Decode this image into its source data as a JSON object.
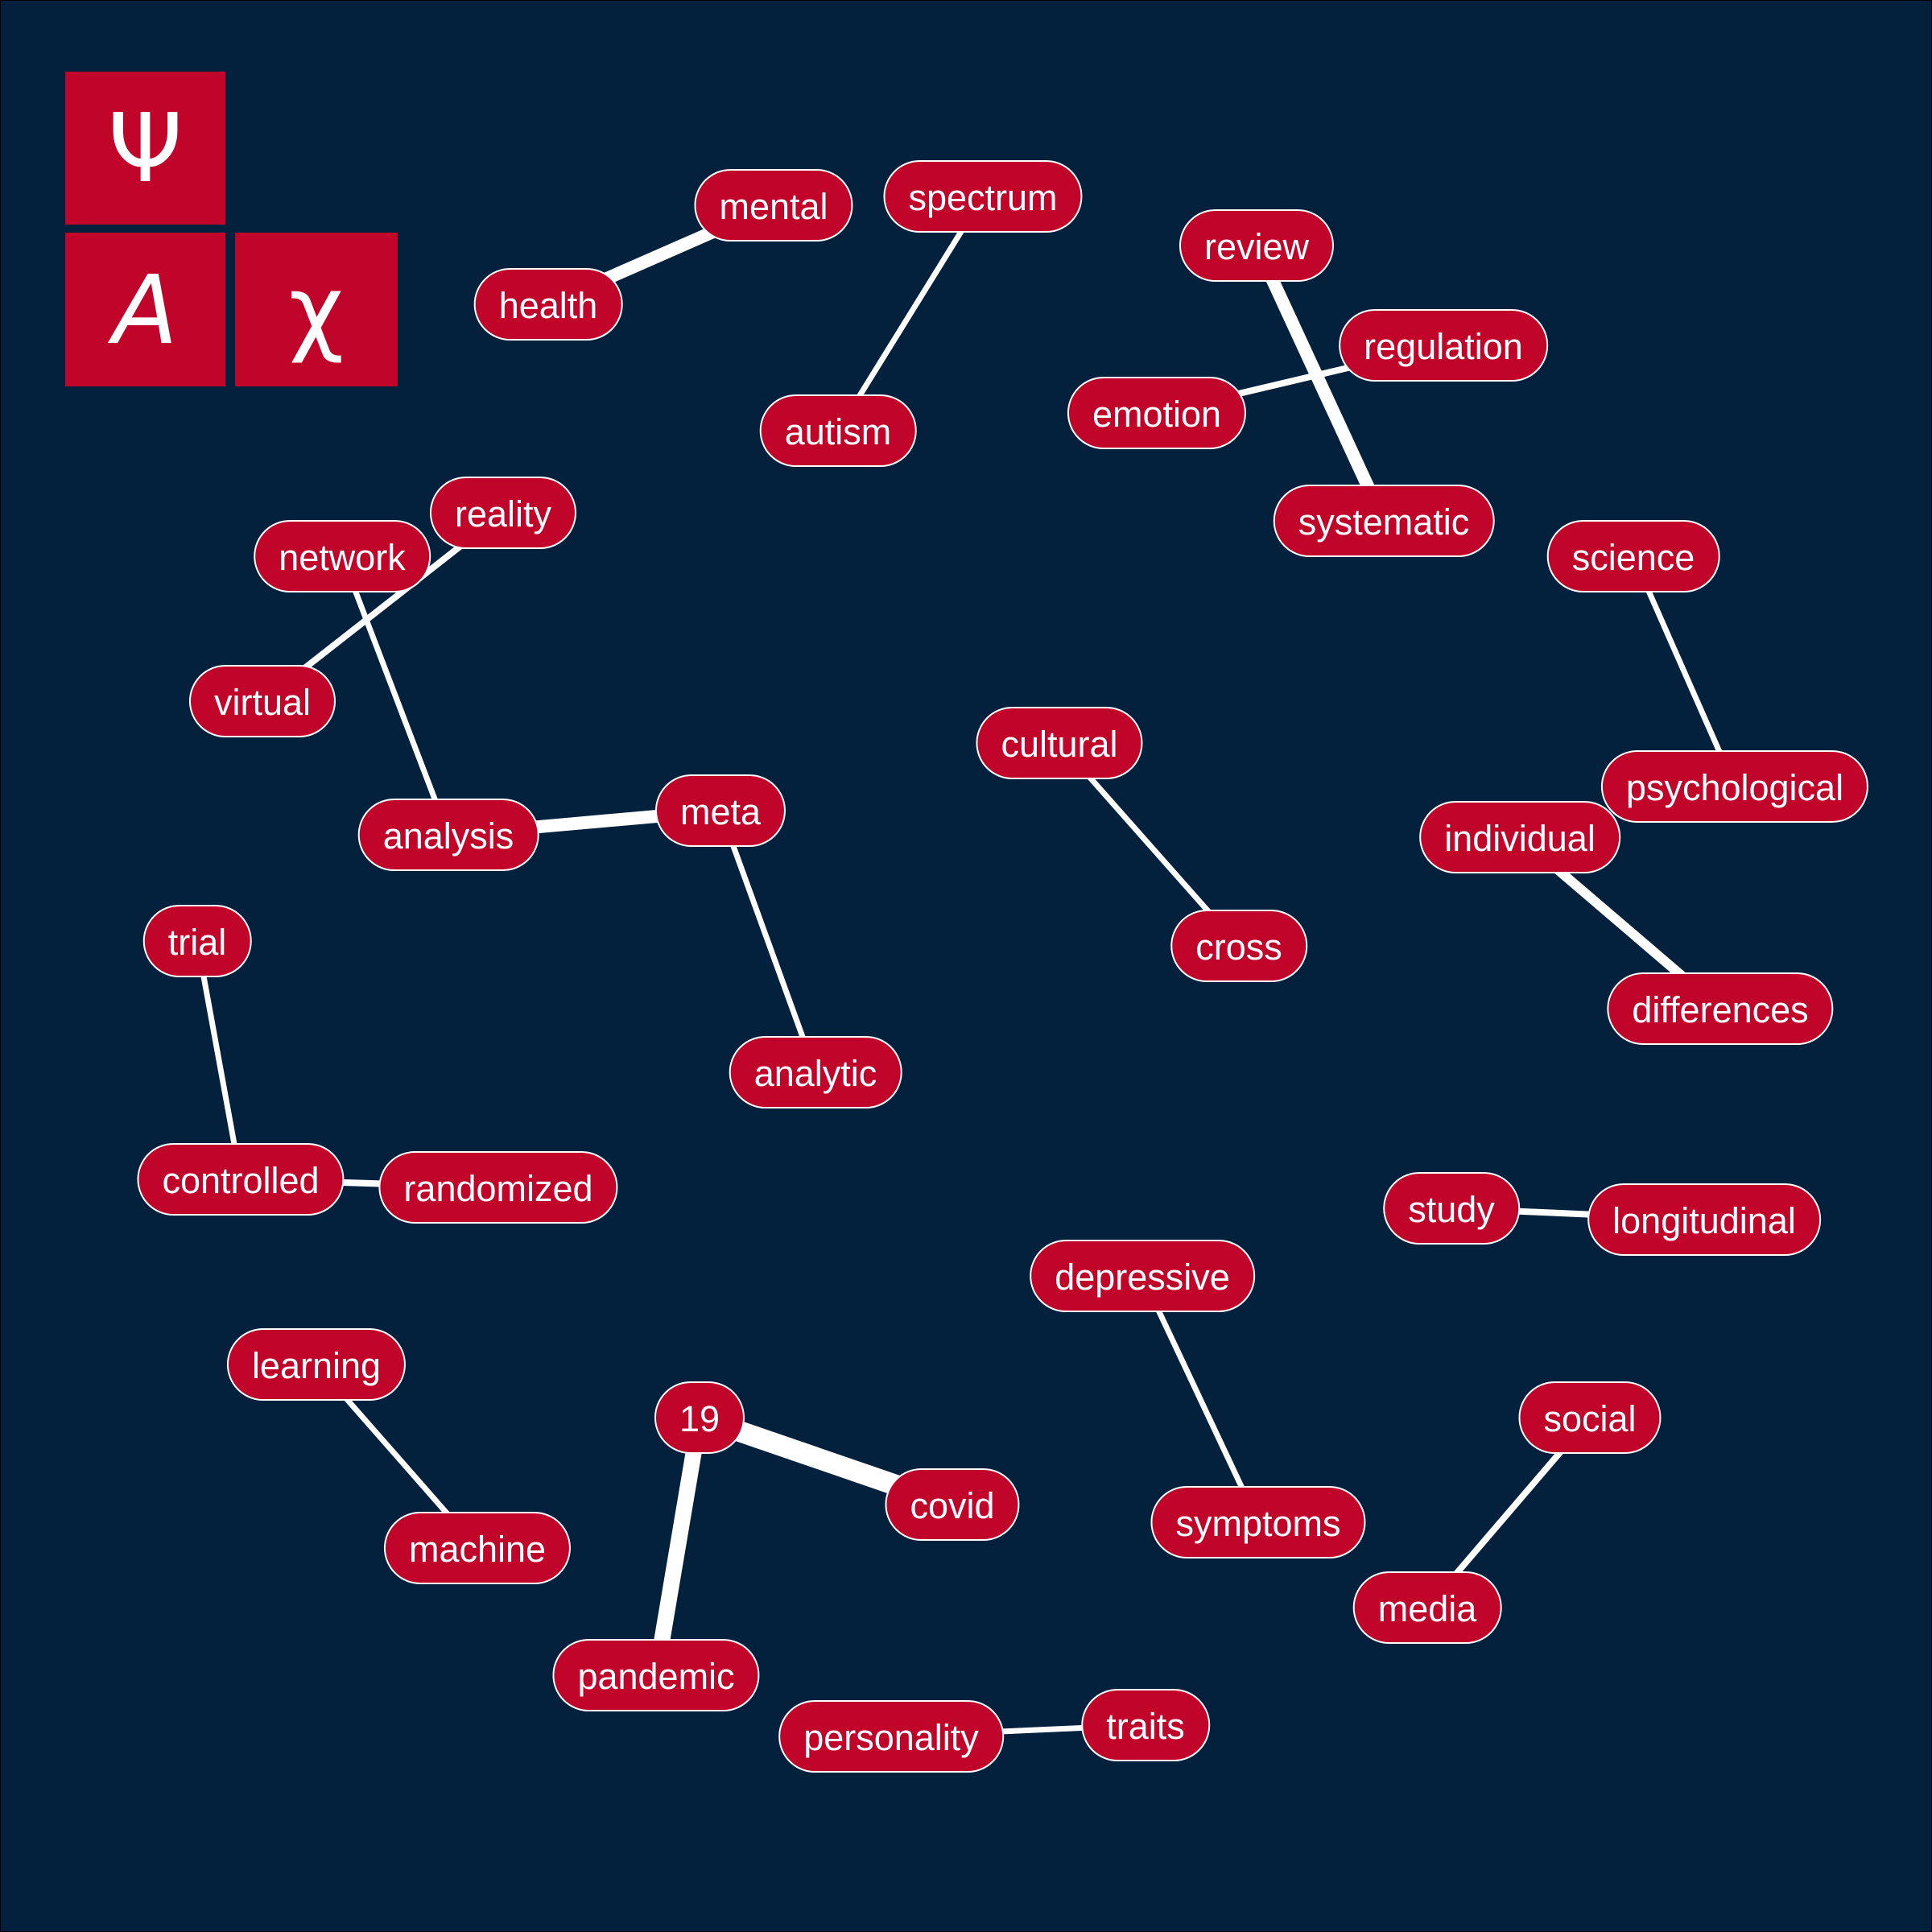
{
  "colors": {
    "background": "#03203D",
    "node_fill": "#C0042A",
    "node_border": "#ffffff",
    "node_text": "#ffffff",
    "edge": "#ffffff"
  },
  "logo": {
    "psi": "Ψ",
    "alpha": "A",
    "chi": "χ"
  },
  "diagram": {
    "type": "word co-occurrence network",
    "nodes": [
      {
        "id": "mental",
        "label": "mental"
      },
      {
        "id": "health",
        "label": "health"
      },
      {
        "id": "spectrum",
        "label": "spectrum"
      },
      {
        "id": "autism",
        "label": "autism"
      },
      {
        "id": "review",
        "label": "review"
      },
      {
        "id": "regulation",
        "label": "regulation"
      },
      {
        "id": "emotion",
        "label": "emotion"
      },
      {
        "id": "systematic",
        "label": "systematic"
      },
      {
        "id": "reality",
        "label": "reality"
      },
      {
        "id": "network",
        "label": "network"
      },
      {
        "id": "virtual",
        "label": "virtual"
      },
      {
        "id": "science",
        "label": "science"
      },
      {
        "id": "cultural",
        "label": "cultural"
      },
      {
        "id": "psychological",
        "label": "psychological"
      },
      {
        "id": "individual",
        "label": "individual"
      },
      {
        "id": "analysis",
        "label": "analysis"
      },
      {
        "id": "meta",
        "label": "meta"
      },
      {
        "id": "cross",
        "label": "cross"
      },
      {
        "id": "trial",
        "label": "trial"
      },
      {
        "id": "differences",
        "label": "differences"
      },
      {
        "id": "analytic",
        "label": "analytic"
      },
      {
        "id": "controlled",
        "label": "controlled"
      },
      {
        "id": "randomized",
        "label": "randomized"
      },
      {
        "id": "study",
        "label": "study"
      },
      {
        "id": "longitudinal",
        "label": "longitudinal"
      },
      {
        "id": "depressive",
        "label": "depressive"
      },
      {
        "id": "learning",
        "label": "learning"
      },
      {
        "id": "n19",
        "label": "19"
      },
      {
        "id": "social",
        "label": "social"
      },
      {
        "id": "covid",
        "label": "covid"
      },
      {
        "id": "symptoms",
        "label": "symptoms"
      },
      {
        "id": "machine",
        "label": "machine"
      },
      {
        "id": "media",
        "label": "media"
      },
      {
        "id": "pandemic",
        "label": "pandemic"
      },
      {
        "id": "traits",
        "label": "traits"
      },
      {
        "id": "personality",
        "label": "personality"
      }
    ],
    "edges": [
      {
        "source": "mental",
        "target": "health",
        "weight": 16
      },
      {
        "source": "spectrum",
        "target": "autism",
        "weight": 7
      },
      {
        "source": "review",
        "target": "systematic",
        "weight": 16
      },
      {
        "source": "emotion",
        "target": "regulation",
        "weight": 8
      },
      {
        "source": "reality",
        "target": "virtual",
        "weight": 8
      },
      {
        "source": "network",
        "target": "analysis",
        "weight": 7
      },
      {
        "source": "analysis",
        "target": "meta",
        "weight": 16
      },
      {
        "source": "meta",
        "target": "analytic",
        "weight": 7
      },
      {
        "source": "science",
        "target": "psychological",
        "weight": 7
      },
      {
        "source": "individual",
        "target": "differences",
        "weight": 12
      },
      {
        "source": "cultural",
        "target": "cross",
        "weight": 7
      },
      {
        "source": "trial",
        "target": "controlled",
        "weight": 7
      },
      {
        "source": "controlled",
        "target": "randomized",
        "weight": 8
      },
      {
        "source": "study",
        "target": "longitudinal",
        "weight": 8
      },
      {
        "source": "depressive",
        "target": "symptoms",
        "weight": 7
      },
      {
        "source": "learning",
        "target": "machine",
        "weight": 7
      },
      {
        "source": "n19",
        "target": "covid",
        "weight": 26
      },
      {
        "source": "n19",
        "target": "pandemic",
        "weight": 20
      },
      {
        "source": "social",
        "target": "media",
        "weight": 8
      },
      {
        "source": "personality",
        "target": "traits",
        "weight": 7
      }
    ]
  }
}
